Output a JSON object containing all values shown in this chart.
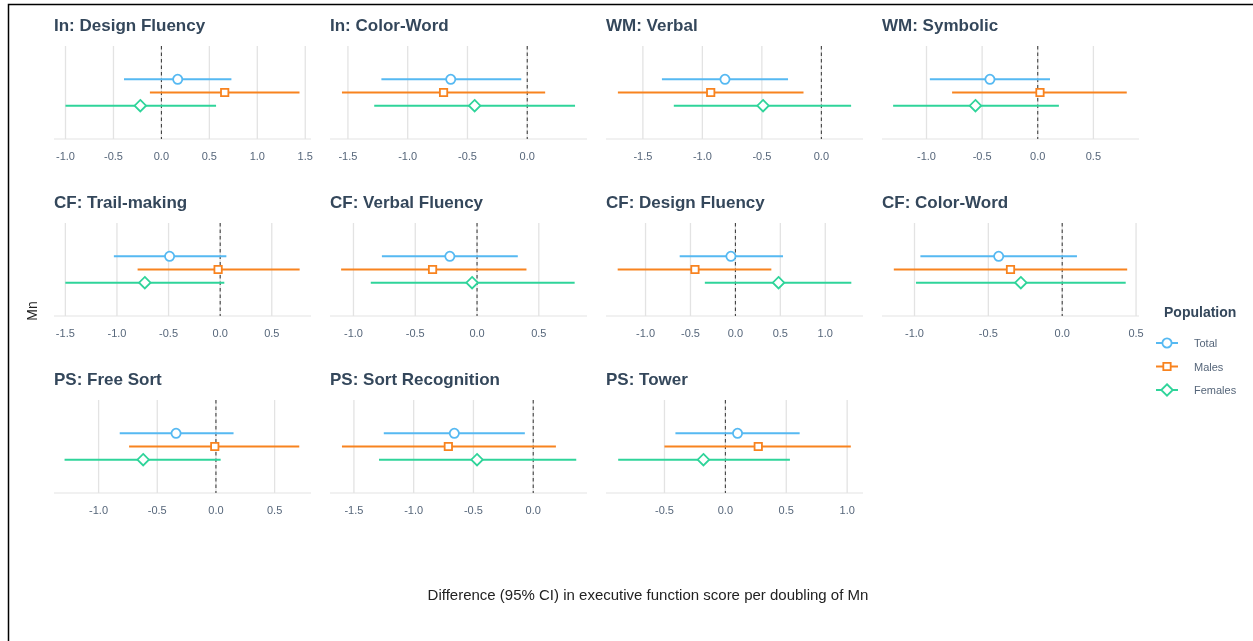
{
  "chart_data": [
    {
      "type": "scatter",
      "title": "In: Design Fluency",
      "orientation": "horizontal",
      "categories": [
        null
      ],
      "grid": "x",
      "xlim": [
        -1.12,
        1.56
      ],
      "xticks": [
        {
          "value": -1,
          "label": "-1.0"
        },
        {
          "value": -0.5,
          "label": "-0.5"
        },
        {
          "value": 0,
          "label": "0.0"
        },
        {
          "value": 0.5,
          "label": "0.5"
        },
        {
          "value": 1,
          "label": "1.0"
        },
        {
          "value": 1.5,
          "label": "1.5"
        }
      ],
      "ref_lines": [
        {
          "axis": "x",
          "value": 0,
          "color": "#333333",
          "line_style": "dashed"
        }
      ],
      "series": [
        {
          "color": "#56b9f2",
          "marker": "circle",
          "values": [
            0.17
          ],
          "errors": [
            [
              -0.39,
              0.73
            ]
          ]
        },
        {
          "color": "#f8831f",
          "marker": "square",
          "values": [
            0.66
          ],
          "errors": [
            [
              -0.12,
              1.44
            ]
          ]
        },
        {
          "color": "#2fd49a",
          "marker": "diamond",
          "values": [
            -0.22
          ],
          "errors": [
            [
              -1.0,
              0.57
            ]
          ]
        }
      ]
    },
    {
      "type": "scatter",
      "title": "In: Color-Word",
      "orientation": "horizontal",
      "categories": [
        null
      ],
      "grid": "x",
      "xlim": [
        -1.65,
        0.5
      ],
      "xticks": [
        {
          "value": -1.5,
          "label": "-1.5"
        },
        {
          "value": -1,
          "label": "-1.0"
        },
        {
          "value": -0.5,
          "label": "-0.5"
        },
        {
          "value": 0,
          "label": "0.0"
        }
      ],
      "ref_lines": [
        {
          "axis": "x",
          "value": 0,
          "color": "#333333",
          "line_style": "dashed"
        }
      ],
      "series": [
        {
          "color": "#56b9f2",
          "marker": "circle",
          "values": [
            -0.64
          ],
          "errors": [
            [
              -1.22,
              -0.05
            ]
          ]
        },
        {
          "color": "#f8831f",
          "marker": "square",
          "values": [
            -0.7
          ],
          "errors": [
            [
              -1.55,
              0.15
            ]
          ]
        },
        {
          "color": "#2fd49a",
          "marker": "diamond",
          "values": [
            -0.44
          ],
          "errors": [
            [
              -1.28,
              0.4
            ]
          ]
        }
      ]
    },
    {
      "type": "scatter",
      "title": "WM: Verbal",
      "orientation": "horizontal",
      "categories": [
        null
      ],
      "grid": "x",
      "xlim": [
        -1.81,
        0.35
      ],
      "xticks": [
        {
          "value": -1.5,
          "label": "-1.5"
        },
        {
          "value": -1,
          "label": "-1.0"
        },
        {
          "value": -0.5,
          "label": "-0.5"
        },
        {
          "value": 0,
          "label": "0.0"
        }
      ],
      "ref_lines": [
        {
          "axis": "x",
          "value": 0,
          "color": "#333333",
          "line_style": "dashed"
        }
      ],
      "series": [
        {
          "color": "#56b9f2",
          "marker": "circle",
          "values": [
            -0.81
          ],
          "errors": [
            [
              -1.34,
              -0.28
            ]
          ]
        },
        {
          "color": "#f8831f",
          "marker": "square",
          "values": [
            -0.93
          ],
          "errors": [
            [
              -1.71,
              -0.15
            ]
          ]
        },
        {
          "color": "#2fd49a",
          "marker": "diamond",
          "values": [
            -0.49
          ],
          "errors": [
            [
              -1.24,
              0.25
            ]
          ]
        }
      ]
    },
    {
      "type": "scatter",
      "title": "WM: Symbolic",
      "orientation": "horizontal",
      "categories": [
        null
      ],
      "grid": "x",
      "xlim": [
        -1.4,
        0.91
      ],
      "xticks": [
        {
          "value": -1,
          "label": "-1.0"
        },
        {
          "value": -0.5,
          "label": "-0.5"
        },
        {
          "value": 0,
          "label": "0.0"
        },
        {
          "value": 0.5,
          "label": "0.5"
        }
      ],
      "ref_lines": [
        {
          "axis": "x",
          "value": 0,
          "color": "#333333",
          "line_style": "dashed"
        }
      ],
      "series": [
        {
          "color": "#56b9f2",
          "marker": "circle",
          "values": [
            -0.43
          ],
          "errors": [
            [
              -0.97,
              0.11
            ]
          ]
        },
        {
          "color": "#f8831f",
          "marker": "square",
          "values": [
            0.02
          ],
          "errors": [
            [
              -0.77,
              0.8
            ]
          ]
        },
        {
          "color": "#2fd49a",
          "marker": "diamond",
          "values": [
            -0.56
          ],
          "errors": [
            [
              -1.3,
              0.19
            ]
          ]
        }
      ]
    },
    {
      "type": "scatter",
      "title": "CF: Trail-making",
      "ylabel": "Mn",
      "orientation": "horizontal",
      "categories": [
        null
      ],
      "grid": "x",
      "xlim": [
        -1.61,
        0.88
      ],
      "xticks": [
        {
          "value": -1.5,
          "label": "-1.5"
        },
        {
          "value": -1,
          "label": "-1.0"
        },
        {
          "value": -0.5,
          "label": "-0.5"
        },
        {
          "value": 0,
          "label": "0.0"
        },
        {
          "value": 0.5,
          "label": "0.5"
        }
      ],
      "ref_lines": [
        {
          "axis": "x",
          "value": 0,
          "color": "#333333",
          "line_style": "dashed"
        }
      ],
      "series": [
        {
          "color": "#56b9f2",
          "marker": "circle",
          "values": [
            -0.49
          ],
          "errors": [
            [
              -1.03,
              0.06
            ]
          ]
        },
        {
          "color": "#f8831f",
          "marker": "square",
          "values": [
            -0.02
          ],
          "errors": [
            [
              -0.8,
              0.77
            ]
          ]
        },
        {
          "color": "#2fd49a",
          "marker": "diamond",
          "values": [
            -0.73
          ],
          "errors": [
            [
              -1.5,
              0.04
            ]
          ]
        }
      ]
    },
    {
      "type": "scatter",
      "title": "CF: Verbal Fluency",
      "orientation": "horizontal",
      "categories": [
        null
      ],
      "grid": "x",
      "xlim": [
        -1.19,
        0.89
      ],
      "xticks": [
        {
          "value": -1,
          "label": "-1.0"
        },
        {
          "value": -0.5,
          "label": "-0.5"
        },
        {
          "value": 0,
          "label": "0.0"
        },
        {
          "value": 0.5,
          "label": "0.5"
        }
      ],
      "ref_lines": [
        {
          "axis": "x",
          "value": 0,
          "color": "#333333",
          "line_style": "dashed"
        }
      ],
      "series": [
        {
          "color": "#56b9f2",
          "marker": "circle",
          "values": [
            -0.22
          ],
          "errors": [
            [
              -0.77,
              0.33
            ]
          ]
        },
        {
          "color": "#f8831f",
          "marker": "square",
          "values": [
            -0.36
          ],
          "errors": [
            [
              -1.1,
              0.4
            ]
          ]
        },
        {
          "color": "#2fd49a",
          "marker": "diamond",
          "values": [
            -0.04
          ],
          "errors": [
            [
              -0.86,
              0.79
            ]
          ]
        }
      ]
    },
    {
      "type": "scatter",
      "title": "CF: Design Fluency",
      "orientation": "horizontal",
      "categories": [
        null
      ],
      "grid": "x",
      "xlim": [
        -1.44,
        1.42
      ],
      "xticks": [
        {
          "value": -1,
          "label": "-1.0"
        },
        {
          "value": -0.5,
          "label": "-0.5"
        },
        {
          "value": 0,
          "label": "0.0"
        },
        {
          "value": 0.5,
          "label": "0.5"
        },
        {
          "value": 1,
          "label": "1.0"
        }
      ],
      "ref_lines": [
        {
          "axis": "x",
          "value": 0,
          "color": "#333333",
          "line_style": "dashed"
        }
      ],
      "series": [
        {
          "color": "#56b9f2",
          "marker": "circle",
          "values": [
            -0.05
          ],
          "errors": [
            [
              -0.62,
              0.53
            ]
          ]
        },
        {
          "color": "#f8831f",
          "marker": "square",
          "values": [
            -0.45
          ],
          "errors": [
            [
              -1.31,
              0.4
            ]
          ]
        },
        {
          "color": "#2fd49a",
          "marker": "diamond",
          "values": [
            0.48
          ],
          "errors": [
            [
              -0.34,
              1.29
            ]
          ]
        }
      ]
    },
    {
      "type": "scatter",
      "title": "CF: Color-Word",
      "legend": "right",
      "legend_title": "Population",
      "orientation": "horizontal",
      "categories": [
        null
      ],
      "grid": "x",
      "xlim": [
        -1.22,
        0.52
      ],
      "xticks": [
        {
          "value": -1,
          "label": "-1.0"
        },
        {
          "value": -0.5,
          "label": "-0.5"
        },
        {
          "value": 0,
          "label": "0.0"
        },
        {
          "value": 0.5,
          "label": "0.5"
        }
      ],
      "ref_lines": [
        {
          "axis": "x",
          "value": 0,
          "color": "#333333",
          "line_style": "dashed"
        }
      ],
      "series": [
        {
          "name": "Total",
          "color": "#56b9f2",
          "marker": "circle",
          "values": [
            -0.43
          ],
          "errors": [
            [
              -0.96,
              0.1
            ]
          ]
        },
        {
          "name": "Males",
          "color": "#f8831f",
          "marker": "square",
          "values": [
            -0.35
          ],
          "errors": [
            [
              -1.14,
              0.44
            ]
          ]
        },
        {
          "name": "Females",
          "color": "#2fd49a",
          "marker": "diamond",
          "values": [
            -0.28
          ],
          "errors": [
            [
              -0.99,
              0.43
            ]
          ]
        }
      ]
    },
    {
      "type": "scatter",
      "title": "PS: Free Sort",
      "orientation": "horizontal",
      "categories": [
        null
      ],
      "grid": "x",
      "xlim": [
        -1.38,
        0.81
      ],
      "xticks": [
        {
          "value": -1,
          "label": "-1.0"
        },
        {
          "value": -0.5,
          "label": "-0.5"
        },
        {
          "value": 0,
          "label": "0.0"
        },
        {
          "value": 0.5,
          "label": "0.5"
        }
      ],
      "ref_lines": [
        {
          "axis": "x",
          "value": 0,
          "color": "#333333",
          "line_style": "dashed"
        }
      ],
      "series": [
        {
          "color": "#56b9f2",
          "marker": "circle",
          "values": [
            -0.34
          ],
          "errors": [
            [
              -0.82,
              0.15
            ]
          ]
        },
        {
          "color": "#f8831f",
          "marker": "square",
          "values": [
            -0.01
          ],
          "errors": [
            [
              -0.74,
              0.71
            ]
          ]
        },
        {
          "color": "#2fd49a",
          "marker": "diamond",
          "values": [
            -0.62
          ],
          "errors": [
            [
              -1.29,
              0.04
            ]
          ]
        }
      ]
    },
    {
      "type": "scatter",
      "title": "PS: Sort Recognition",
      "xlabel": "Difference (95% CI) in executive function score per doubling of Mn",
      "orientation": "horizontal",
      "categories": [
        null
      ],
      "grid": "x",
      "xlim": [
        -1.7,
        0.45
      ],
      "xticks": [
        {
          "value": -1.5,
          "label": "-1.5"
        },
        {
          "value": -1,
          "label": "-1.0"
        },
        {
          "value": -0.5,
          "label": "-0.5"
        },
        {
          "value": 0,
          "label": "0.0"
        }
      ],
      "ref_lines": [
        {
          "axis": "x",
          "value": 0,
          "color": "#333333",
          "line_style": "dashed"
        }
      ],
      "series": [
        {
          "color": "#56b9f2",
          "marker": "circle",
          "values": [
            -0.66
          ],
          "errors": [
            [
              -1.25,
              -0.07
            ]
          ]
        },
        {
          "color": "#f8831f",
          "marker": "square",
          "values": [
            -0.71
          ],
          "errors": [
            [
              -1.6,
              0.19
            ]
          ]
        },
        {
          "color": "#2fd49a",
          "marker": "diamond",
          "values": [
            -0.47
          ],
          "errors": [
            [
              -1.29,
              0.36
            ]
          ]
        }
      ]
    },
    {
      "type": "scatter",
      "title": "PS: Tower",
      "orientation": "horizontal",
      "categories": [
        null
      ],
      "grid": "x",
      "xlim": [
        -0.98,
        1.13
      ],
      "xticks": [
        {
          "value": -0.5,
          "label": "-0.5"
        },
        {
          "value": 0,
          "label": "0.0"
        },
        {
          "value": 0.5,
          "label": "0.5"
        },
        {
          "value": 1,
          "label": "1.0"
        }
      ],
      "ref_lines": [
        {
          "axis": "x",
          "value": 0,
          "color": "#333333",
          "line_style": "dashed"
        }
      ],
      "series": [
        {
          "color": "#56b9f2",
          "marker": "circle",
          "values": [
            0.1
          ],
          "errors": [
            [
              -0.41,
              0.61
            ]
          ]
        },
        {
          "color": "#f8831f",
          "marker": "square",
          "values": [
            0.27
          ],
          "errors": [
            [
              -0.5,
              1.03
            ]
          ]
        },
        {
          "color": "#2fd49a",
          "marker": "diamond",
          "values": [
            -0.18
          ],
          "errors": [
            [
              -0.88,
              0.53
            ]
          ]
        }
      ]
    }
  ]
}
